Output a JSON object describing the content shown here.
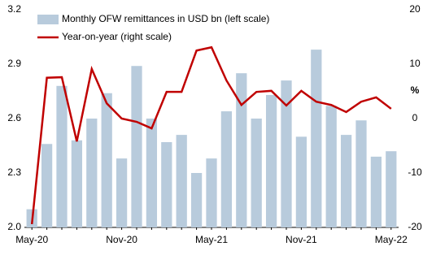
{
  "chart_data": {
    "type": "bar-line",
    "categories": [
      "May-20",
      null,
      null,
      null,
      null,
      null,
      "Nov-20",
      null,
      null,
      null,
      null,
      null,
      "May-21",
      null,
      null,
      null,
      null,
      null,
      "Nov-21",
      null,
      null,
      null,
      null,
      null,
      "May-22"
    ],
    "series": [
      {
        "name": "Monthly OFW remittances in USD bn (left scale)",
        "type": "bar",
        "color": "#b8cbdc",
        "values": [
          2.1,
          2.46,
          2.78,
          2.48,
          2.6,
          2.74,
          2.38,
          2.89,
          2.6,
          2.47,
          2.51,
          2.3,
          2.38,
          2.64,
          2.85,
          2.6,
          2.73,
          2.81,
          2.5,
          2.98,
          2.67,
          2.51,
          2.59,
          2.39,
          2.42
        ]
      },
      {
        "name": "Year-on-year (right scale)",
        "type": "line",
        "axis": "y2",
        "color": "#c00000",
        "values": [
          -19.4,
          7.5,
          7.6,
          -4.2,
          9.1,
          2.8,
          0,
          -0.6,
          -1.8,
          4.9,
          4.9,
          12.5,
          13.1,
          7.0,
          2.5,
          4.9,
          5.1,
          2.4,
          5.1,
          3.1,
          2.5,
          1.2,
          3.1,
          3.9,
          1.8
        ]
      }
    ],
    "ylim": [
      2.0,
      3.2
    ],
    "yticks": [
      {
        "value": 2.0,
        "label": "2.0"
      },
      {
        "value": 2.3,
        "label": "2.3"
      },
      {
        "value": 2.6,
        "label": "2.6"
      },
      {
        "value": 2.9,
        "label": "2.9"
      },
      {
        "value": 3.2,
        "label": "3.2"
      }
    ],
    "y2lim": [
      -20,
      20
    ],
    "y2ticks": [
      -20,
      -10,
      0,
      10,
      20
    ],
    "y2label": "%"
  }
}
